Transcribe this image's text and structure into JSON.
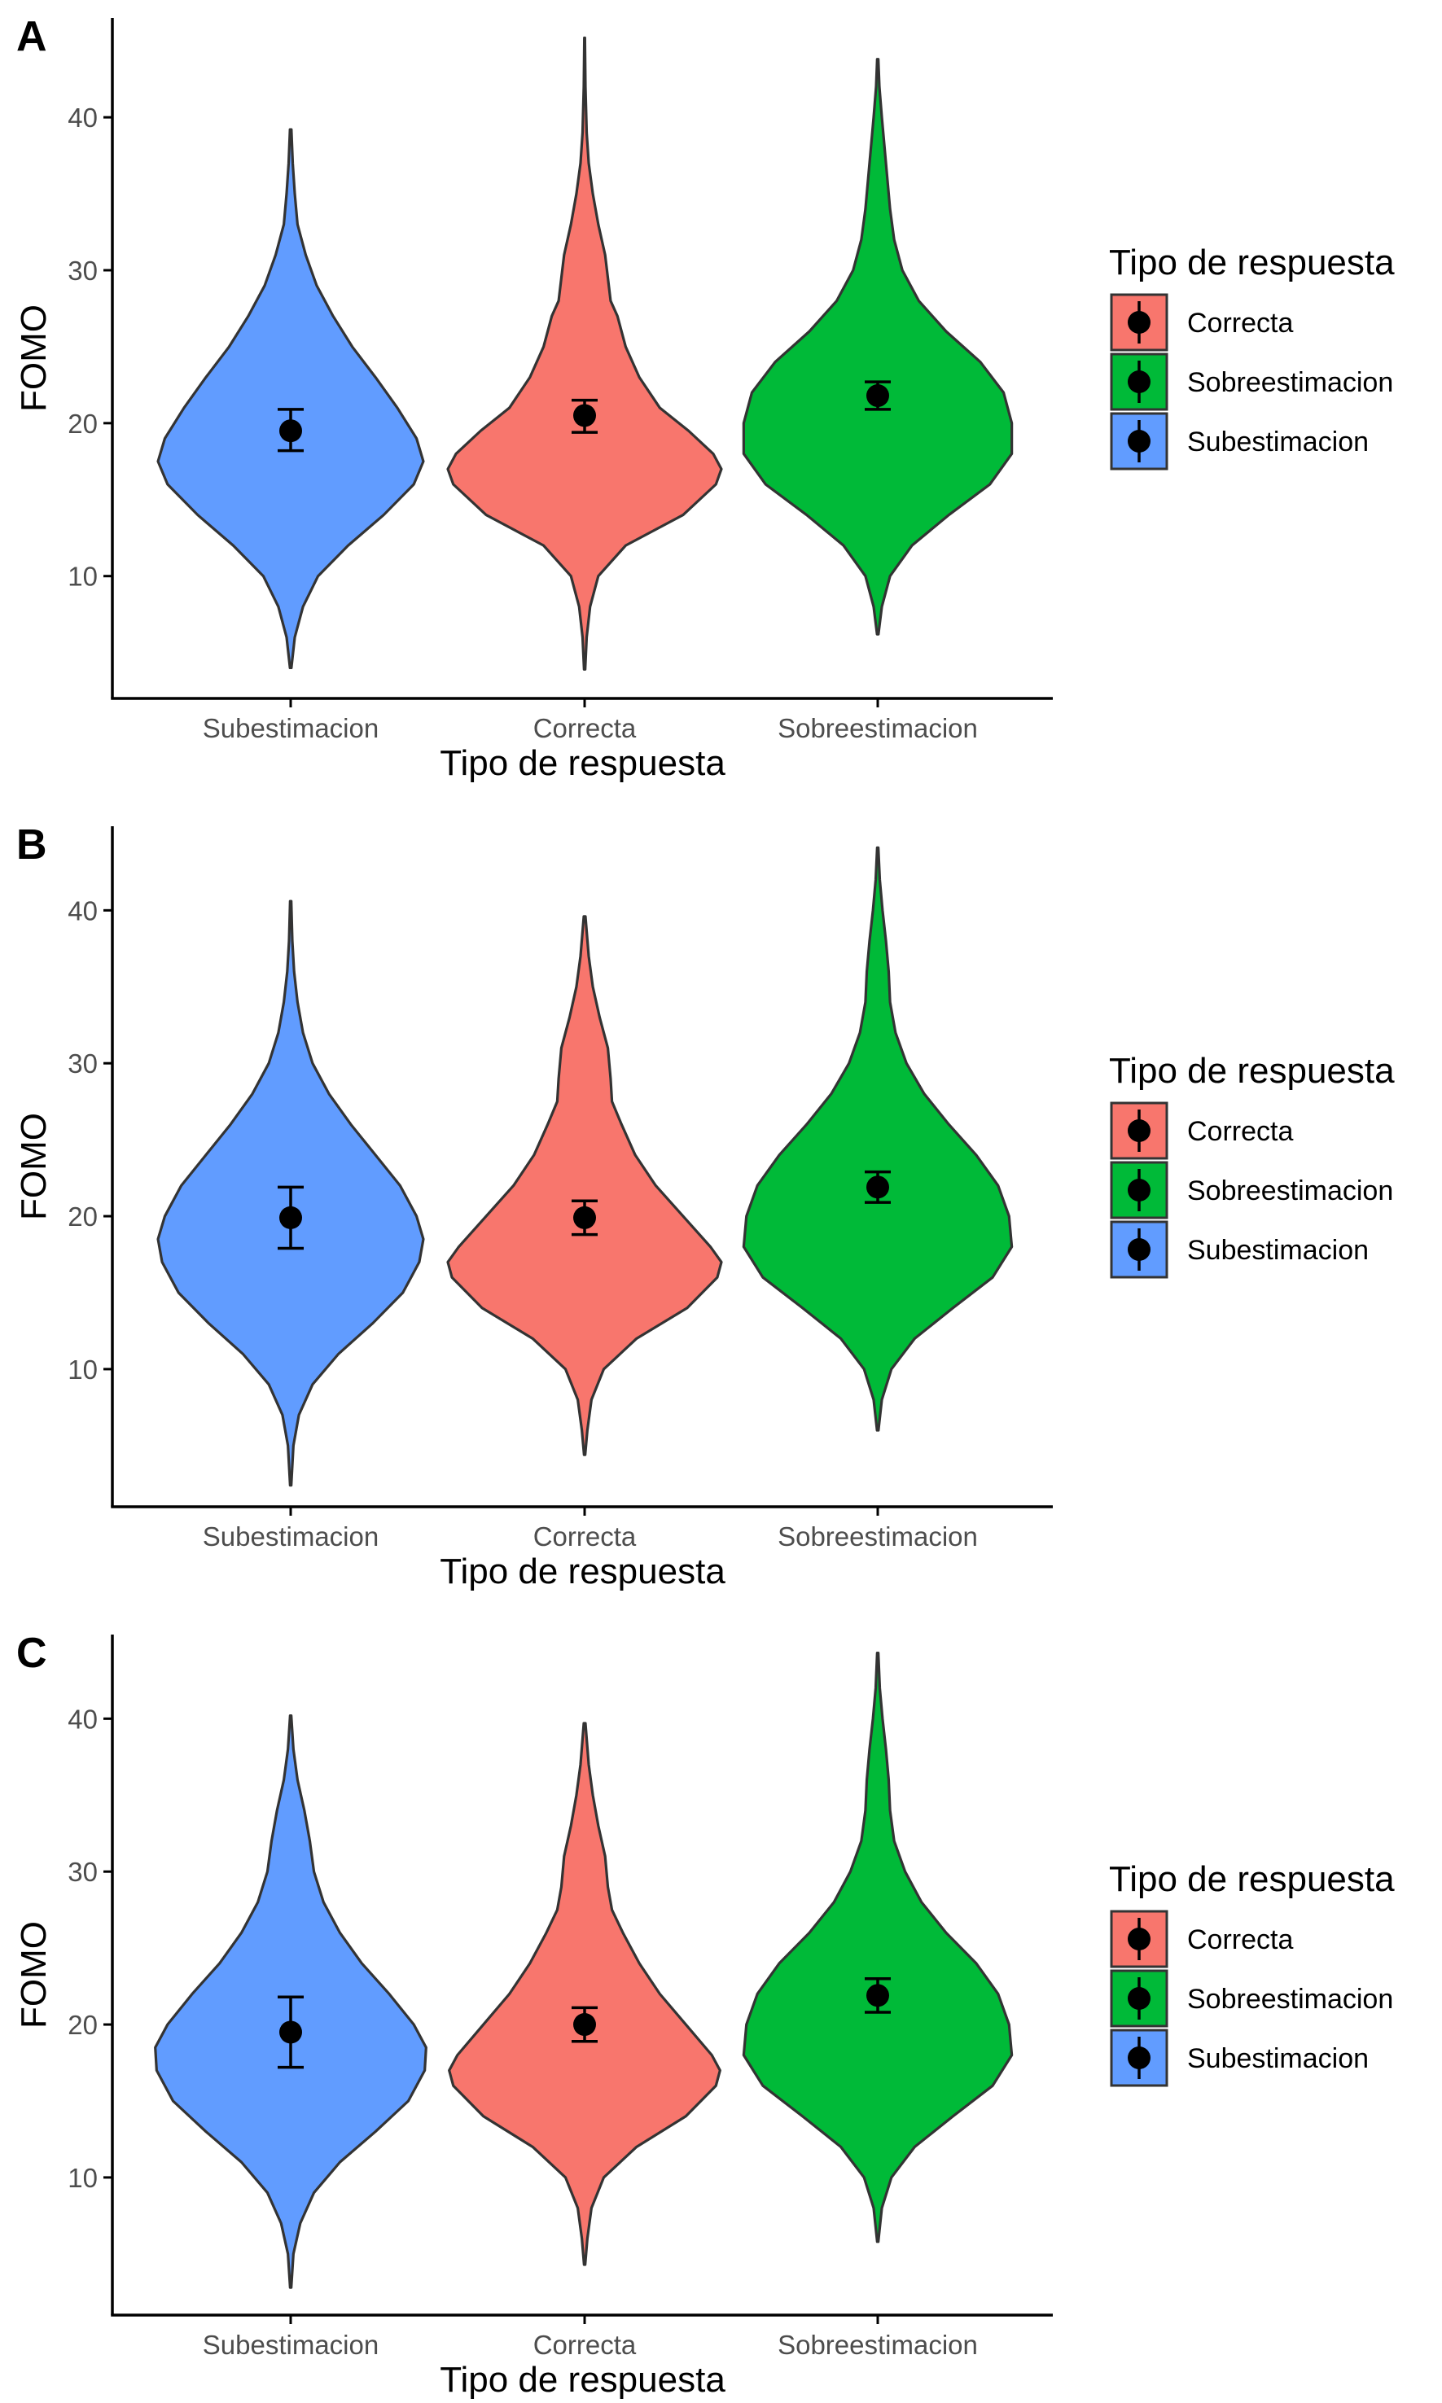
{
  "colors": {
    "Correcta": "#F8766D",
    "Sobreestimacion": "#00BA38",
    "Subestimacion": "#619CFF",
    "outline": "#333333",
    "axis": "#000000",
    "point": "#000000"
  },
  "legend": {
    "title": "Tipo de respuesta",
    "items": [
      "Correcta",
      "Sobreestimacion",
      "Subestimacion"
    ]
  },
  "chart_data": [
    {
      "type": "violin",
      "panel_label": "A",
      "xlabel": "Tipo de respuesta",
      "ylabel": "FOMO",
      "categories": [
        "Subestimacion",
        "Correcta",
        "Sobreestimacion"
      ],
      "yticks": [
        10,
        20,
        30,
        40
      ],
      "ylim": [
        2.0,
        46.5
      ],
      "grid": false,
      "legend_position": "right",
      "series": [
        {
          "category": "Subestimacion",
          "fill_key": "Subestimacion",
          "range": [
            4.0,
            39.2
          ],
          "mean": 19.5,
          "ci": [
            18.2,
            20.9
          ],
          "density": [
            [
              4,
              0.005
            ],
            [
              6,
              0.03
            ],
            [
              8,
              0.09
            ],
            [
              10,
              0.2
            ],
            [
              12,
              0.42
            ],
            [
              14,
              0.68
            ],
            [
              16,
              0.9
            ],
            [
              17.5,
              0.97
            ],
            [
              19,
              0.92
            ],
            [
              21,
              0.78
            ],
            [
              23,
              0.62
            ],
            [
              25,
              0.45
            ],
            [
              27,
              0.31
            ],
            [
              29,
              0.19
            ],
            [
              31,
              0.11
            ],
            [
              33,
              0.05
            ],
            [
              35,
              0.03
            ],
            [
              37,
              0.015
            ],
            [
              39.2,
              0.005
            ]
          ]
        },
        {
          "category": "Correcta",
          "fill_key": "Correcta",
          "range": [
            3.9,
            45.2
          ],
          "mean": 20.5,
          "ci": [
            19.4,
            21.5
          ],
          "density": [
            [
              3.9,
              0.004
            ],
            [
              6,
              0.015
            ],
            [
              8,
              0.04
            ],
            [
              10,
              0.1
            ],
            [
              12,
              0.3
            ],
            [
              14,
              0.72
            ],
            [
              16,
              0.96
            ],
            [
              17,
              1.0
            ],
            [
              18,
              0.94
            ],
            [
              19.5,
              0.76
            ],
            [
              21,
              0.55
            ],
            [
              23,
              0.4
            ],
            [
              25,
              0.3
            ],
            [
              27,
              0.24
            ],
            [
              28,
              0.19
            ],
            [
              29.5,
              0.17
            ],
            [
              31,
              0.15
            ],
            [
              33,
              0.1
            ],
            [
              35,
              0.06
            ],
            [
              37,
              0.03
            ],
            [
              39,
              0.015
            ],
            [
              42,
              0.006
            ],
            [
              45.2,
              0.002
            ]
          ]
        },
        {
          "category": "Sobreestimacion",
          "fill_key": "Sobreestimacion",
          "range": [
            6.2,
            43.8
          ],
          "mean": 21.8,
          "ci": [
            20.9,
            22.7
          ],
          "density": [
            [
              6.2,
              0.005
            ],
            [
              8,
              0.03
            ],
            [
              10,
              0.09
            ],
            [
              12,
              0.25
            ],
            [
              14,
              0.52
            ],
            [
              16,
              0.82
            ],
            [
              18,
              0.98
            ],
            [
              20,
              0.98
            ],
            [
              22,
              0.92
            ],
            [
              24,
              0.75
            ],
            [
              26,
              0.5
            ],
            [
              28,
              0.3
            ],
            [
              30,
              0.18
            ],
            [
              32,
              0.12
            ],
            [
              34,
              0.09
            ],
            [
              36,
              0.07
            ],
            [
              38,
              0.05
            ],
            [
              40,
              0.03
            ],
            [
              42,
              0.012
            ],
            [
              43.8,
              0.004
            ]
          ]
        }
      ]
    },
    {
      "type": "violin",
      "panel_label": "B",
      "xlabel": "Tipo de respuesta",
      "ylabel": "FOMO",
      "categories": [
        "Subestimacion",
        "Correcta",
        "Sobreestimacion"
      ],
      "yticks": [
        10,
        20,
        30,
        40
      ],
      "ylim": [
        1.0,
        45.5
      ],
      "grid": false,
      "legend_position": "right",
      "series": [
        {
          "category": "Subestimacion",
          "fill_key": "Subestimacion",
          "range": [
            2.4,
            40.6
          ],
          "mean": 19.9,
          "ci": [
            17.9,
            21.9
          ],
          "density": [
            [
              2.4,
              0.004
            ],
            [
              5,
              0.02
            ],
            [
              7,
              0.06
            ],
            [
              9,
              0.16
            ],
            [
              11,
              0.35
            ],
            [
              13,
              0.6
            ],
            [
              15,
              0.82
            ],
            [
              17,
              0.94
            ],
            [
              18.5,
              0.97
            ],
            [
              20,
              0.92
            ],
            [
              22,
              0.8
            ],
            [
              24,
              0.62
            ],
            [
              26,
              0.44
            ],
            [
              28,
              0.28
            ],
            [
              30,
              0.16
            ],
            [
              32,
              0.09
            ],
            [
              34,
              0.05
            ],
            [
              36,
              0.025
            ],
            [
              38,
              0.012
            ],
            [
              40.6,
              0.004
            ]
          ]
        },
        {
          "category": "Correcta",
          "fill_key": "Correcta",
          "range": [
            4.4,
            39.6
          ],
          "mean": 19.9,
          "ci": [
            18.8,
            21.0
          ],
          "density": [
            [
              4.4,
              0.004
            ],
            [
              6,
              0.02
            ],
            [
              8,
              0.05
            ],
            [
              10,
              0.14
            ],
            [
              12,
              0.38
            ],
            [
              14,
              0.75
            ],
            [
              16,
              0.97
            ],
            [
              17,
              1.0
            ],
            [
              18,
              0.92
            ],
            [
              20,
              0.72
            ],
            [
              22,
              0.52
            ],
            [
              24,
              0.37
            ],
            [
              26,
              0.27
            ],
            [
              27.5,
              0.2
            ],
            [
              29,
              0.19
            ],
            [
              31,
              0.17
            ],
            [
              33,
              0.11
            ],
            [
              35,
              0.06
            ],
            [
              37,
              0.03
            ],
            [
              39.6,
              0.006
            ]
          ]
        },
        {
          "category": "Sobreestimacion",
          "fill_key": "Sobreestimacion",
          "range": [
            6.0,
            44.1
          ],
          "mean": 21.9,
          "ci": [
            20.9,
            22.9
          ],
          "density": [
            [
              6,
              0.005
            ],
            [
              8,
              0.03
            ],
            [
              10,
              0.1
            ],
            [
              12,
              0.27
            ],
            [
              14,
              0.55
            ],
            [
              16,
              0.84
            ],
            [
              18,
              0.98
            ],
            [
              20,
              0.96
            ],
            [
              22,
              0.88
            ],
            [
              24,
              0.72
            ],
            [
              26,
              0.52
            ],
            [
              28,
              0.34
            ],
            [
              30,
              0.21
            ],
            [
              32,
              0.13
            ],
            [
              34,
              0.09
            ],
            [
              36,
              0.08
            ],
            [
              38,
              0.06
            ],
            [
              40,
              0.035
            ],
            [
              42,
              0.015
            ],
            [
              44.1,
              0.004
            ]
          ]
        }
      ]
    },
    {
      "type": "violin",
      "panel_label": "C",
      "xlabel": "Tipo de respuesta",
      "ylabel": "FOMO",
      "categories": [
        "Subestimacion",
        "Correcta",
        "Sobreestimacion"
      ],
      "yticks": [
        10,
        20,
        30,
        40
      ],
      "ylim": [
        1.0,
        45.5
      ],
      "grid": false,
      "legend_position": "right",
      "series": [
        {
          "category": "Subestimacion",
          "fill_key": "Subestimacion",
          "range": [
            2.8,
            40.2
          ],
          "mean": 19.5,
          "ci": [
            17.2,
            21.8
          ],
          "density": [
            [
              2.8,
              0.004
            ],
            [
              5,
              0.02
            ],
            [
              7,
              0.07
            ],
            [
              9,
              0.17
            ],
            [
              11,
              0.36
            ],
            [
              13,
              0.62
            ],
            [
              15,
              0.86
            ],
            [
              17,
              0.98
            ],
            [
              18.5,
              0.99
            ],
            [
              20,
              0.9
            ],
            [
              22,
              0.72
            ],
            [
              24,
              0.52
            ],
            [
              26,
              0.36
            ],
            [
              28,
              0.24
            ],
            [
              30,
              0.17
            ],
            [
              32,
              0.14
            ],
            [
              34,
              0.1
            ],
            [
              36,
              0.05
            ],
            [
              38,
              0.02
            ],
            [
              40.2,
              0.004
            ]
          ]
        },
        {
          "category": "Correcta",
          "fill_key": "Correcta",
          "range": [
            4.3,
            39.7
          ],
          "mean": 20.0,
          "ci": [
            18.9,
            21.1
          ],
          "density": [
            [
              4.3,
              0.004
            ],
            [
              6,
              0.02
            ],
            [
              8,
              0.05
            ],
            [
              10,
              0.14
            ],
            [
              12,
              0.38
            ],
            [
              14,
              0.74
            ],
            [
              16,
              0.96
            ],
            [
              17,
              0.99
            ],
            [
              18,
              0.93
            ],
            [
              20,
              0.74
            ],
            [
              22,
              0.55
            ],
            [
              24,
              0.4
            ],
            [
              26,
              0.28
            ],
            [
              27.5,
              0.2
            ],
            [
              29,
              0.17
            ],
            [
              31,
              0.15
            ],
            [
              33,
              0.1
            ],
            [
              35,
              0.06
            ],
            [
              37,
              0.03
            ],
            [
              39.7,
              0.006
            ]
          ]
        },
        {
          "category": "Sobreestimacion",
          "fill_key": "Sobreestimacion",
          "range": [
            5.8,
            44.3
          ],
          "mean": 21.9,
          "ci": [
            20.8,
            23.0
          ],
          "density": [
            [
              5.8,
              0.004
            ],
            [
              8,
              0.03
            ],
            [
              10,
              0.1
            ],
            [
              12,
              0.27
            ],
            [
              14,
              0.55
            ],
            [
              16,
              0.84
            ],
            [
              18,
              0.98
            ],
            [
              20,
              0.96
            ],
            [
              22,
              0.88
            ],
            [
              24,
              0.72
            ],
            [
              26,
              0.5
            ],
            [
              28,
              0.32
            ],
            [
              30,
              0.2
            ],
            [
              32,
              0.12
            ],
            [
              34,
              0.09
            ],
            [
              36,
              0.08
            ],
            [
              38,
              0.06
            ],
            [
              40,
              0.035
            ],
            [
              42,
              0.015
            ],
            [
              44.3,
              0.004
            ]
          ]
        }
      ]
    }
  ]
}
